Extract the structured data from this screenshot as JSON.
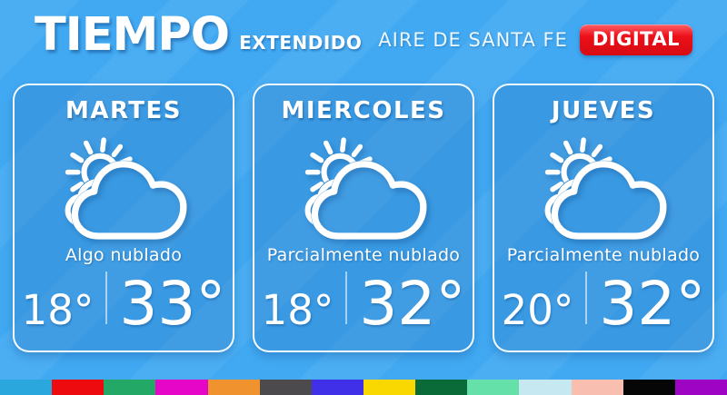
{
  "header": {
    "title": "TIEMPO",
    "subtitle": "EXTENDIDO"
  },
  "brand": {
    "name": "AIRE DE SANTA FE",
    "badge": "DIGITAL"
  },
  "forecast": {
    "cards": [
      {
        "day": "MARTES",
        "condition": "Algo nublado",
        "temp_min": "18°",
        "temp_max": "33°",
        "icon": "sun-behind-cloud-icon"
      },
      {
        "day": "MIERCOLES",
        "condition": "Parcialmente nublado",
        "temp_min": "18°",
        "temp_max": "32°",
        "icon": "sun-behind-cloud-icon"
      },
      {
        "day": "JUEVES",
        "condition": "Parcialmente nublado",
        "temp_min": "20°",
        "temp_max": "32°",
        "icon": "sun-behind-cloud-icon"
      }
    ]
  },
  "colors": {
    "background": "#41a9f2",
    "badge_red": "#ec1019",
    "card_border": "#ffffff"
  },
  "footer_bar": {
    "segments": [
      "#2aa7dc",
      "#ed0b10",
      "#23a866",
      "#e606c8",
      "#f0922d",
      "#4c4a4c",
      "#4031e8",
      "#f8d800",
      "#0b6b38",
      "#64e0a8",
      "#c6e8f0",
      "#f8bfb0",
      "#060606",
      "#9e04c4"
    ]
  }
}
